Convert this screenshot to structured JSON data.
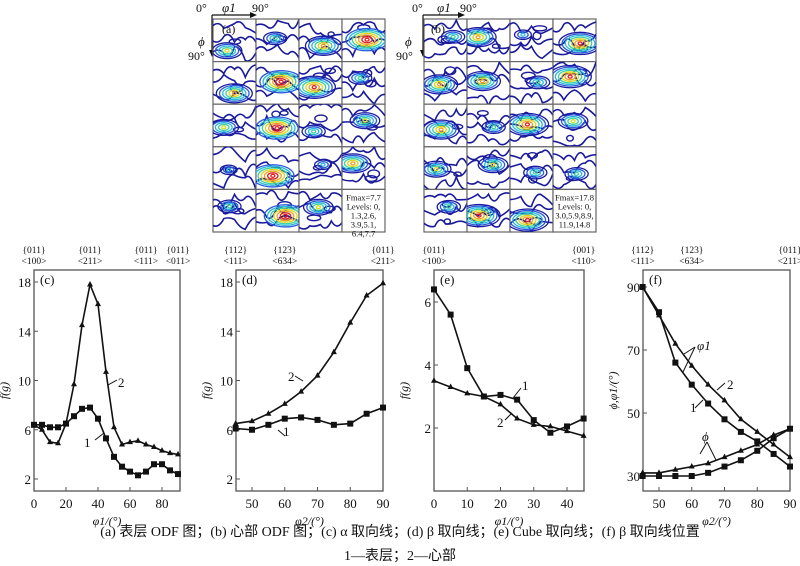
{
  "figure": {
    "caption_line1": "(a)  表层 ODF 图；(b)  心部 ODF 图；(c) α 取向线；(d) β 取向线；(e) Cube 取向线；(f) β 取向线位置",
    "caption_line2": "1—表层；2—心部"
  },
  "odf_maps": [
    {
      "id": "a",
      "panel_label": "(a)",
      "axis_top_left": "0°",
      "axis_top_var": "φ1",
      "axis_top_right": "90°",
      "axis_left_var": "ϕ",
      "axis_left_bottom": "90°",
      "legend_lines": [
        "Fmax=7.7",
        "Levels: 0,",
        "1.3,2.6,",
        "3.9,5.1,",
        "6.4,7.7"
      ],
      "grid_rows": 5,
      "grid_cols": 4
    },
    {
      "id": "b",
      "panel_label": "(b)",
      "axis_top_left": "0°",
      "axis_top_var": "φ1",
      "axis_top_right": "90°",
      "axis_left_var": "ϕ",
      "axis_left_bottom": "90°",
      "legend_lines": [
        "Fmax=17.8",
        "Levels: 0,",
        "3.0,5.9,8.9,",
        "11.9,14.8"
      ],
      "grid_rows": 5,
      "grid_cols": 4
    }
  ],
  "chart_data": [
    {
      "id": "c",
      "type": "line",
      "panel_label": "(c)",
      "title": "α 取向线",
      "xlabel": "φ1/(°)",
      "ylabel": "f(g)",
      "xlim": [
        0,
        90
      ],
      "ylim": [
        1,
        19
      ],
      "xticks": [
        0,
        20,
        40,
        60,
        80
      ],
      "yticks": [
        2,
        6,
        10,
        14,
        18
      ],
      "top_annotations": [
        {
          "x": 0,
          "plane": "{011}",
          "dir": "<100>"
        },
        {
          "x": 35,
          "plane": "{011}",
          "dir": "<211>"
        },
        {
          "x": 70,
          "plane": "{011}",
          "dir": "<111>"
        },
        {
          "x": 90,
          "plane": "{011}",
          "dir": "<011>"
        }
      ],
      "series": [
        {
          "name": "1",
          "label": "1",
          "marker": "square",
          "x": [
            0,
            5,
            10,
            15,
            20,
            25,
            30,
            35,
            40,
            45,
            50,
            55,
            60,
            65,
            70,
            75,
            80,
            85,
            90
          ],
          "values": [
            6.4,
            6.4,
            6.2,
            6.2,
            6.5,
            7.1,
            7.7,
            7.8,
            6.9,
            5.3,
            3.8,
            3.0,
            2.6,
            2.3,
            2.6,
            3.2,
            3.2,
            2.7,
            2.4
          ]
        },
        {
          "name": "2",
          "label": "2",
          "marker": "triangle",
          "x": [
            0,
            5,
            10,
            15,
            20,
            25,
            30,
            35,
            40,
            45,
            50,
            55,
            60,
            65,
            70,
            75,
            80,
            85,
            90
          ],
          "values": [
            6.4,
            6.0,
            5.0,
            4.9,
            6.5,
            9.7,
            14.5,
            17.8,
            16.2,
            10.7,
            6.2,
            4.8,
            5.0,
            5.1,
            4.8,
            4.6,
            4.3,
            4.1,
            4.0
          ]
        }
      ]
    },
    {
      "id": "d",
      "type": "line",
      "panel_label": "(d)",
      "title": "β 取向线",
      "xlabel": "φ2/(°)",
      "ylabel": "f(g)",
      "xlim": [
        45,
        90
      ],
      "ylim": [
        1,
        19
      ],
      "xticks": [
        50,
        60,
        70,
        80,
        90
      ],
      "yticks": [
        2,
        6,
        10,
        14,
        18
      ],
      "top_annotations": [
        {
          "x": 45,
          "plane": "{112}",
          "dir": "<111>"
        },
        {
          "x": 60,
          "plane": "{123}",
          "dir": "<634>"
        },
        {
          "x": 90,
          "plane": "{011}",
          "dir": "<211>"
        }
      ],
      "series": [
        {
          "name": "1",
          "label": "1",
          "marker": "square",
          "x": [
            45,
            50,
            55,
            60,
            65,
            70,
            75,
            80,
            85,
            90
          ],
          "values": [
            6.1,
            6.0,
            6.4,
            6.9,
            7.0,
            6.8,
            6.4,
            6.5,
            7.3,
            7.8
          ]
        },
        {
          "name": "2",
          "label": "2",
          "marker": "triangle",
          "x": [
            45,
            50,
            55,
            60,
            65,
            70,
            75,
            80,
            85,
            90
          ],
          "values": [
            6.5,
            6.7,
            7.3,
            8.1,
            9.1,
            10.4,
            12.3,
            14.7,
            16.9,
            17.9
          ]
        }
      ]
    },
    {
      "id": "e",
      "type": "line",
      "panel_label": "(e)",
      "title": "Cube 取向线",
      "xlabel": "φ1/(°)",
      "ylabel": "f(g)",
      "xlim": [
        0,
        45
      ],
      "ylim": [
        0.1,
        7.1
      ],
      "xticks": [
        0,
        10,
        20,
        30,
        40
      ],
      "yticks": [
        2,
        4,
        6
      ],
      "top_annotations": [
        {
          "x": 0,
          "plane": "{011}",
          "dir": "<100>"
        },
        {
          "x": 45,
          "plane": "{001}",
          "dir": "<110>"
        }
      ],
      "series": [
        {
          "name": "1",
          "label": "1",
          "marker": "square",
          "x": [
            0,
            5,
            10,
            15,
            20,
            25,
            30,
            35,
            40,
            45
          ],
          "values": [
            6.4,
            5.6,
            3.9,
            3.0,
            3.05,
            2.9,
            2.25,
            1.85,
            2.05,
            2.3
          ]
        },
        {
          "name": "2",
          "label": "2",
          "marker": "triangle",
          "x": [
            0,
            5,
            10,
            15,
            20,
            25,
            30,
            35,
            40,
            45
          ],
          "values": [
            3.5,
            3.3,
            3.1,
            3.0,
            2.75,
            2.3,
            2.1,
            2.05,
            1.9,
            1.75
          ]
        }
      ]
    },
    {
      "id": "f",
      "type": "line",
      "panel_label": "(f)",
      "title": "β 取向线位置",
      "xlabel": "φ2/(°)",
      "ylabel": "ϕ,φ1/(°)",
      "xlim": [
        45,
        90
      ],
      "ylim": [
        27,
        92
      ],
      "xticks": [
        50,
        60,
        70,
        80,
        90
      ],
      "yticks": [
        30,
        50,
        70,
        90
      ],
      "top_annotations": [
        {
          "x": 45,
          "plane": "{112}",
          "dir": "<111>"
        },
        {
          "x": 60,
          "plane": "{123}",
          "dir": "<634>"
        },
        {
          "x": 90,
          "plane": "{011}",
          "dir": "<211>"
        }
      ],
      "group_labels": {
        "phi1": "φ1",
        "phi": "ϕ"
      },
      "series": [
        {
          "name": "1-φ1",
          "label": "1",
          "marker": "square",
          "x": [
            45,
            50,
            55,
            60,
            65,
            70,
            75,
            80,
            85,
            90
          ],
          "values": [
            90,
            82,
            66,
            59,
            53,
            48,
            44,
            41,
            37,
            33
          ]
        },
        {
          "name": "2-φ1",
          "label": "2",
          "marker": "triangle",
          "x": [
            45,
            50,
            55,
            60,
            65,
            70,
            75,
            80,
            85,
            90
          ],
          "values": [
            90,
            81,
            72,
            65,
            59,
            54,
            48,
            44,
            40,
            36
          ]
        },
        {
          "name": "1-ϕ",
          "label": "",
          "marker": "square",
          "x": [
            45,
            50,
            55,
            60,
            65,
            70,
            75,
            80,
            85,
            90
          ],
          "values": [
            30,
            30,
            30,
            30,
            31,
            33,
            35,
            38,
            42,
            45
          ]
        },
        {
          "name": "2-ϕ",
          "label": "",
          "marker": "triangle",
          "x": [
            45,
            50,
            55,
            60,
            65,
            70,
            75,
            80,
            85,
            90
          ],
          "values": [
            31,
            31,
            32,
            33,
            34,
            36,
            38,
            40,
            43,
            45
          ]
        }
      ]
    }
  ]
}
